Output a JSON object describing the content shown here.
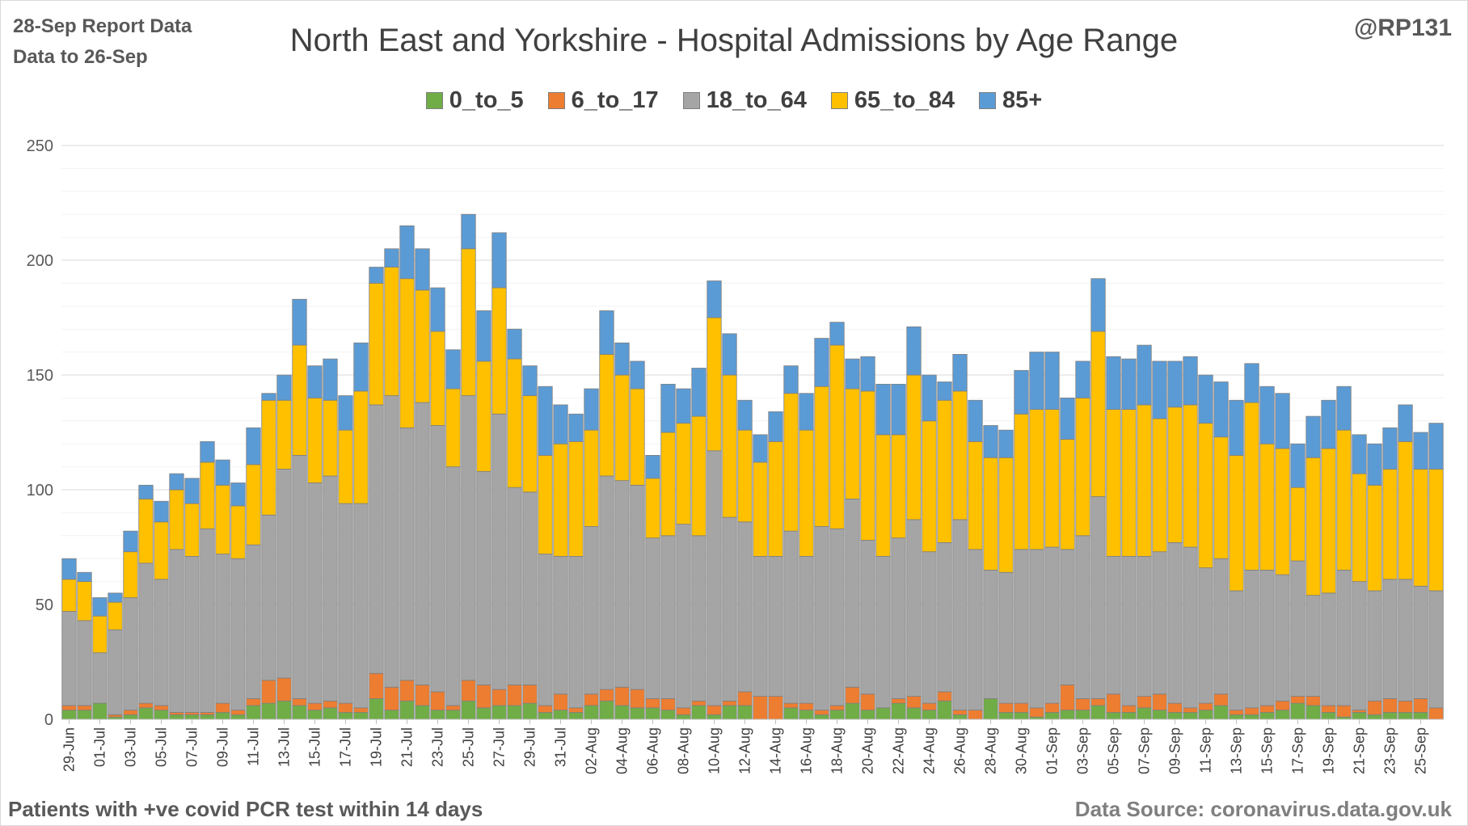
{
  "header": {
    "report_line1": "28-Sep Report Data",
    "report_line2": "Data to 26-Sep",
    "handle": "@RP131"
  },
  "footer": {
    "note": "Patients with  +ve covid PCR test within 14 days",
    "source": "Data Source: coronavirus.data.gov.uk"
  },
  "colors": {
    "0_to_5": "#70ad47",
    "6_to_17": "#ed7d31",
    "18_to_64": "#a5a5a5",
    "65_to_84": "#ffc000",
    "85+": "#5b9bd5"
  },
  "chart_data": {
    "type": "bar",
    "stacked": true,
    "title": "North East and Yorkshire - Hospital Admissions by Age Range",
    "xlabel": "",
    "ylabel": "",
    "ylim": [
      0,
      250
    ],
    "yticks": [
      0,
      50,
      100,
      150,
      200,
      250
    ],
    "grid": true,
    "legend_position": "top",
    "x_tick_labels": [
      "29-Jun",
      "01-Jul",
      "03-Jul",
      "05-Jul",
      "07-Jul",
      "09-Jul",
      "11-Jul",
      "13-Jul",
      "15-Jul",
      "17-Jul",
      "19-Jul",
      "21-Jul",
      "23-Jul",
      "25-Jul",
      "27-Jul",
      "29-Jul",
      "31-Jul",
      "02-Aug",
      "04-Aug",
      "06-Aug",
      "08-Aug",
      "10-Aug",
      "12-Aug",
      "14-Aug",
      "16-Aug",
      "18-Aug",
      "20-Aug",
      "22-Aug",
      "24-Aug",
      "26-Aug",
      "28-Aug",
      "30-Aug",
      "01-Sep",
      "03-Sep",
      "05-Sep",
      "07-Sep",
      "09-Sep",
      "11-Sep",
      "13-Sep",
      "15-Sep",
      "17-Sep",
      "19-Sep",
      "21-Sep",
      "23-Sep",
      "25-Sep"
    ],
    "categories": [
      "29-Jun",
      "30-Jun",
      "01-Jul",
      "02-Jul",
      "03-Jul",
      "04-Jul",
      "05-Jul",
      "06-Jul",
      "07-Jul",
      "08-Jul",
      "09-Jul",
      "10-Jul",
      "11-Jul",
      "12-Jul",
      "13-Jul",
      "14-Jul",
      "15-Jul",
      "16-Jul",
      "17-Jul",
      "18-Jul",
      "19-Jul",
      "20-Jul",
      "21-Jul",
      "22-Jul",
      "23-Jul",
      "24-Jul",
      "25-Jul",
      "26-Jul",
      "27-Jul",
      "28-Jul",
      "29-Jul",
      "30-Jul",
      "31-Jul",
      "01-Aug",
      "02-Aug",
      "03-Aug",
      "04-Aug",
      "05-Aug",
      "06-Aug",
      "07-Aug",
      "08-Aug",
      "09-Aug",
      "10-Aug",
      "11-Aug",
      "12-Aug",
      "13-Aug",
      "14-Aug",
      "15-Aug",
      "16-Aug",
      "17-Aug",
      "18-Aug",
      "19-Aug",
      "20-Aug",
      "21-Aug",
      "22-Aug",
      "23-Aug",
      "24-Aug",
      "25-Aug",
      "26-Aug",
      "27-Aug",
      "28-Aug",
      "29-Aug",
      "30-Aug",
      "31-Aug",
      "01-Sep",
      "02-Sep",
      "03-Sep",
      "04-Sep",
      "05-Sep",
      "06-Sep",
      "07-Sep",
      "08-Sep",
      "09-Sep",
      "10-Sep",
      "11-Sep",
      "12-Sep",
      "13-Sep",
      "14-Sep",
      "15-Sep",
      "16-Sep",
      "17-Sep",
      "18-Sep",
      "19-Sep",
      "20-Sep",
      "21-Sep",
      "22-Sep",
      "23-Sep",
      "24-Sep",
      "25-Sep",
      "26-Sep"
    ],
    "series": [
      {
        "name": "0_to_5",
        "values": [
          4,
          4,
          7,
          1,
          2,
          5,
          4,
          2,
          2,
          2,
          3,
          2,
          6,
          7,
          8,
          6,
          4,
          5,
          3,
          3,
          9,
          4,
          8,
          6,
          4,
          4,
          8,
          5,
          6,
          6,
          7,
          3,
          4,
          3,
          6,
          8,
          6,
          5,
          5,
          4,
          2,
          6,
          2,
          6,
          6,
          0,
          0,
          5,
          4,
          2,
          4,
          7,
          4,
          5,
          7,
          5,
          4,
          8,
          2,
          0,
          9,
          3,
          3,
          1,
          3,
          4,
          4,
          6,
          3,
          3,
          5,
          4,
          3,
          3,
          4,
          6,
          2,
          2,
          3,
          4,
          7,
          6,
          3,
          1,
          3,
          2,
          3,
          3,
          3,
          0
        ]
      },
      {
        "name": "6_to_17",
        "values": [
          2,
          2,
          0,
          1,
          2,
          2,
          2,
          1,
          1,
          1,
          4,
          2,
          3,
          10,
          10,
          3,
          3,
          3,
          4,
          2,
          11,
          10,
          9,
          9,
          8,
          2,
          9,
          10,
          7,
          9,
          8,
          3,
          7,
          2,
          5,
          5,
          8,
          8,
          4,
          5,
          3,
          2,
          4,
          2,
          6,
          10,
          10,
          2,
          3,
          2,
          2,
          7,
          7,
          0,
          2,
          5,
          3,
          4,
          2,
          4,
          0,
          4,
          4,
          4,
          4,
          11,
          5,
          3,
          8,
          3,
          5,
          7,
          4,
          2,
          3,
          5,
          2,
          3,
          3,
          4,
          3,
          4,
          3,
          5,
          1,
          6,
          6,
          5,
          6,
          5
        ]
      },
      {
        "name": "18_to_64",
        "values": [
          41,
          37,
          22,
          37,
          49,
          61,
          55,
          71,
          68,
          80,
          65,
          66,
          67,
          72,
          91,
          106,
          96,
          98,
          87,
          89,
          117,
          127,
          110,
          123,
          116,
          104,
          124,
          93,
          120,
          86,
          84,
          66,
          60,
          66,
          73,
          93,
          90,
          89,
          70,
          71,
          80,
          72,
          111,
          80,
          74,
          61,
          61,
          75,
          64,
          80,
          77,
          82,
          67,
          66,
          70,
          77,
          66,
          65,
          83,
          70,
          56,
          57,
          67,
          69,
          68,
          59,
          71,
          88,
          60,
          65,
          61,
          62,
          70,
          70,
          59,
          59,
          52,
          60,
          59,
          55,
          59,
          44,
          49,
          59,
          56,
          48,
          52,
          53,
          49,
          51
        ]
      },
      {
        "name": "65_to_84",
        "values": [
          14,
          17,
          16,
          12,
          20,
          28,
          25,
          26,
          23,
          29,
          30,
          23,
          35,
          50,
          30,
          48,
          37,
          33,
          32,
          49,
          53,
          56,
          65,
          49,
          41,
          34,
          64,
          48,
          55,
          56,
          42,
          43,
          49,
          50,
          42,
          53,
          46,
          42,
          26,
          45,
          44,
          52,
          58,
          62,
          40,
          41,
          50,
          60,
          55,
          61,
          80,
          48,
          65,
          53,
          45,
          63,
          57,
          62,
          56,
          47,
          49,
          50,
          59,
          61,
          60,
          48,
          60,
          72,
          64,
          64,
          66,
          58,
          59,
          62,
          63,
          53,
          59,
          73,
          55,
          55,
          32,
          60,
          63,
          61,
          47,
          46,
          48,
          60,
          51,
          53
        ]
      },
      {
        "name": "85+",
        "values": [
          9,
          4,
          8,
          4,
          9,
          6,
          9,
          7,
          11,
          9,
          11,
          10,
          16,
          3,
          11,
          20,
          14,
          18,
          15,
          21,
          7,
          8,
          23,
          18,
          19,
          17,
          15,
          22,
          24,
          13,
          13,
          30,
          17,
          12,
          18,
          19,
          14,
          12,
          10,
          21,
          15,
          21,
          16,
          18,
          13,
          12,
          13,
          12,
          16,
          21,
          10,
          13,
          15,
          22,
          22,
          21,
          20,
          8,
          16,
          18,
          14,
          12,
          19,
          25,
          25,
          18,
          16,
          23,
          23,
          22,
          26,
          25,
          20,
          21,
          21,
          24,
          24,
          17,
          25,
          24,
          19,
          18,
          21,
          19,
          17,
          18,
          18,
          16,
          16,
          20
        ]
      }
    ]
  }
}
